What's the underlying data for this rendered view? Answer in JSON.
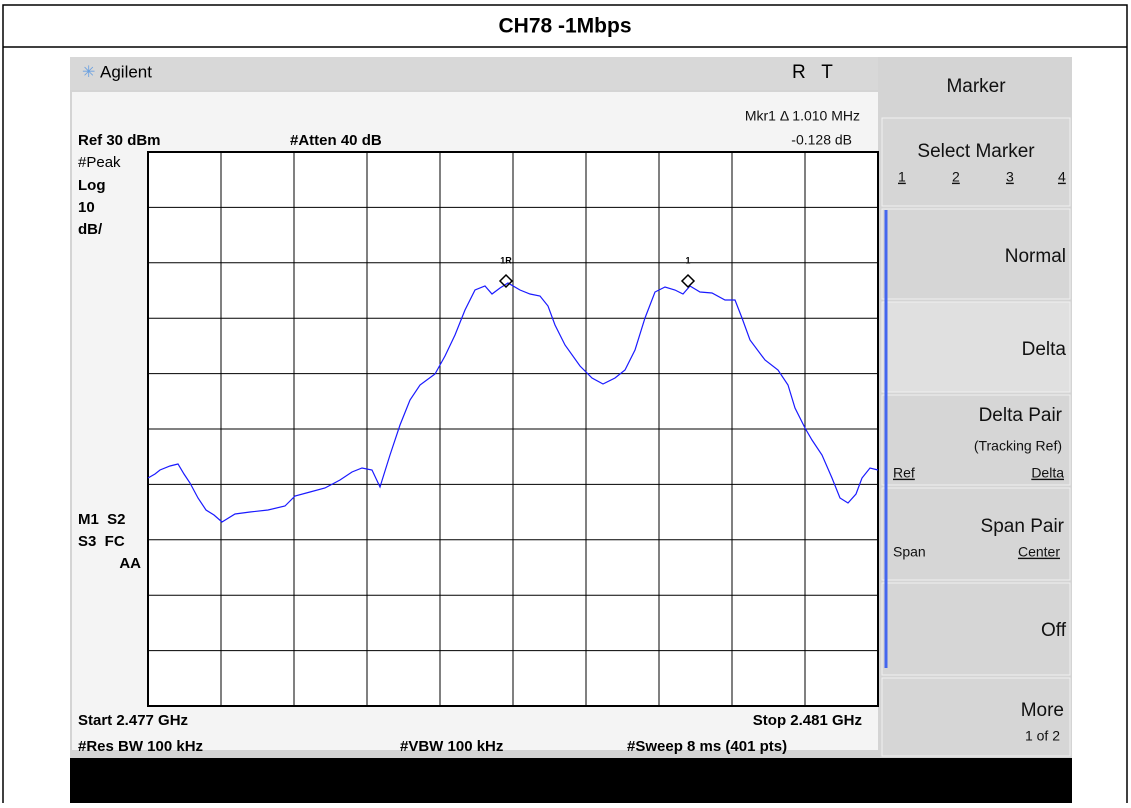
{
  "title": "CH78 -1Mbps",
  "header": {
    "brand": "Agilent",
    "status": "R   T"
  },
  "display": {
    "marker_readout": "Mkr1 Δ  1.010 MHz",
    "marker_delta": "-0.128 dB",
    "ref": "Ref 30 dBm",
    "atten": "#Atten 40 dB",
    "left_labels": [
      "#Peak",
      "Log",
      "10",
      "dB/",
      "M1  S2",
      "S3  FC",
      "AA"
    ],
    "marker_labels": [
      "1R",
      "1"
    ],
    "start": "Start 2.477 GHz",
    "stop": "Stop 2.481 GHz",
    "res_bw": "#Res BW 100 kHz",
    "vbw": "#VBW 100 kHz",
    "sweep": "#Sweep 8 ms (401 pts)"
  },
  "softkeys": {
    "title": "Marker",
    "select": {
      "label": "Select Marker",
      "options": [
        "1",
        "2",
        "3",
        "4"
      ]
    },
    "normal": "Normal",
    "delta": "Delta",
    "delta_pair": {
      "label": "Delta Pair",
      "sub": "(Tracking Ref)",
      "left": "Ref",
      "right": "Delta"
    },
    "span_pair": {
      "label": "Span Pair",
      "left": "Span",
      "right": "Center"
    },
    "off": "Off",
    "more": {
      "label": "More",
      "sub": "1 of 2"
    }
  }
}
